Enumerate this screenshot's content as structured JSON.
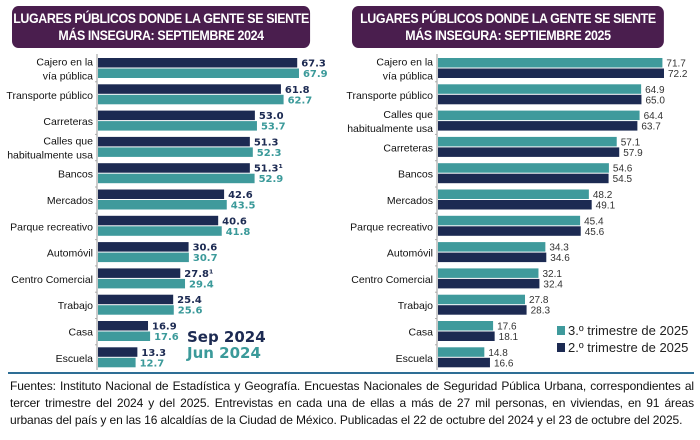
{
  "titles": {
    "left": [
      "LUGARES PÚBLICOS DONDE LA GENTE SE SIENTE",
      "MÁS INSEGURA: SEPTIEMBRE 2024"
    ],
    "right": [
      "LUGARES PÚBLICOS DONDE LA GENTE SE SIENTE",
      "MÁS INSEGURA: SEPTIEMBRE 2025"
    ]
  },
  "colors": {
    "dark": "#1c2a52",
    "teal": "#3f9a9c",
    "title_bg": "#4a1e4e",
    "divider": "#2e6e95"
  },
  "chart_data": [
    {
      "type": "bar",
      "orientation": "horizontal",
      "title": "LUGARES PÚBLICOS DONDE LA GENTE SE SIENTE MÁS INSEGURA: SEPTIEMBRE 2024",
      "categories": [
        [
          "Cajero en la",
          "vía pública"
        ],
        [
          "Transporte público"
        ],
        [
          "Carreteras"
        ],
        [
          "Calles que",
          "habitualmente usa"
        ],
        [
          "Bancos"
        ],
        [
          "Mercados"
        ],
        [
          "Parque recreativo"
        ],
        [
          "Automóvil"
        ],
        [
          "Centro Comercial"
        ],
        [
          "Trabajo"
        ],
        [
          "Casa"
        ],
        [
          "Escuela"
        ]
      ],
      "series": [
        {
          "name": "Sep 2024",
          "color": "#1c2a52",
          "values": [
            67.3,
            61.8,
            53.0,
            51.3,
            51.3,
            42.6,
            40.6,
            30.6,
            27.8,
            25.4,
            16.9,
            13.3
          ],
          "labels": [
            "67.3",
            "61.8",
            "53.0",
            "51.3",
            "51.3¹",
            "42.6",
            "40.6",
            "30.6",
            "27.8¹",
            "25.4",
            "16.9",
            "13.3"
          ]
        },
        {
          "name": "Jun 2024",
          "color": "#3f9a9c",
          "values": [
            67.9,
            62.7,
            53.7,
            52.3,
            52.9,
            43.5,
            41.8,
            30.7,
            29.4,
            25.6,
            17.6,
            12.7
          ],
          "labels": [
            "67.9",
            "62.7",
            "53.7",
            "52.3",
            "52.9",
            "43.5",
            "41.8",
            "30.7",
            "29.4",
            "25.6",
            "17.6",
            "12.7"
          ]
        }
      ],
      "legend": [
        "Sep 2024",
        "Jun 2024"
      ],
      "legend_position": "bottom-right",
      "xlim": [
        0,
        75
      ],
      "grid": false
    },
    {
      "type": "bar",
      "orientation": "horizontal",
      "title": "LUGARES PÚBLICOS DONDE LA GENTE SE SIENTE MÁS INSEGURA: SEPTIEMBRE 2025",
      "categories": [
        [
          "Cajero en la",
          "vía pública"
        ],
        [
          "Transporte público"
        ],
        [
          "Calles que",
          "habitualmente usa"
        ],
        [
          "Carreteras"
        ],
        [
          "Bancos"
        ],
        [
          "Mercados"
        ],
        [
          "Parque recreativo"
        ],
        [
          "Automóvil"
        ],
        [
          "Centro Comercial"
        ],
        [
          "Trabajo"
        ],
        [
          "Casa"
        ],
        [
          "Escuela"
        ]
      ],
      "series": [
        {
          "name": "3.º trimestre de 2025",
          "color": "#3f9a9c",
          "values": [
            71.7,
            64.9,
            64.4,
            57.1,
            54.6,
            48.2,
            45.4,
            34.3,
            32.1,
            27.8,
            17.6,
            14.8
          ],
          "labels": [
            "71.7",
            "64.9",
            "64.4",
            "57.1",
            "54.6",
            "48.2",
            "45.4",
            "34.3",
            "32.1",
            "27.8",
            "17.6",
            "14.8"
          ]
        },
        {
          "name": "2.º trimestre de 2025",
          "color": "#1c2a52",
          "values": [
            72.2,
            65.0,
            63.7,
            57.9,
            54.5,
            49.1,
            45.6,
            34.6,
            32.4,
            28.3,
            18.1,
            16.6
          ],
          "labels": [
            "72.2",
            "65.0",
            "63.7",
            "57.9",
            "54.5",
            "49.1",
            "45.6",
            "34.6",
            "32.4",
            "28.3",
            "18.1",
            "16.6"
          ]
        }
      ],
      "legend": [
        "3.º trimestre de 2025",
        "2.º trimestre de 2025"
      ],
      "legend_position": "bottom-right",
      "xlim": [
        0,
        75
      ],
      "grid": false
    }
  ],
  "footer": "Fuentes: Instituto Nacional de Estadística y Geografía. Encuestas Nacionales de Seguridad Pública Urbana, correspondientes al tercer trimestre del 2024 y del 2025. Entrevistas en cada una de ellas a más de 27 mil personas, en viviendas, en 91 áreas urbanas del país y en las 16 alcaldías de la Ciudad de México. Publicadas el 22 de octubre del 2024 y el 23 de octubre del 2025."
}
